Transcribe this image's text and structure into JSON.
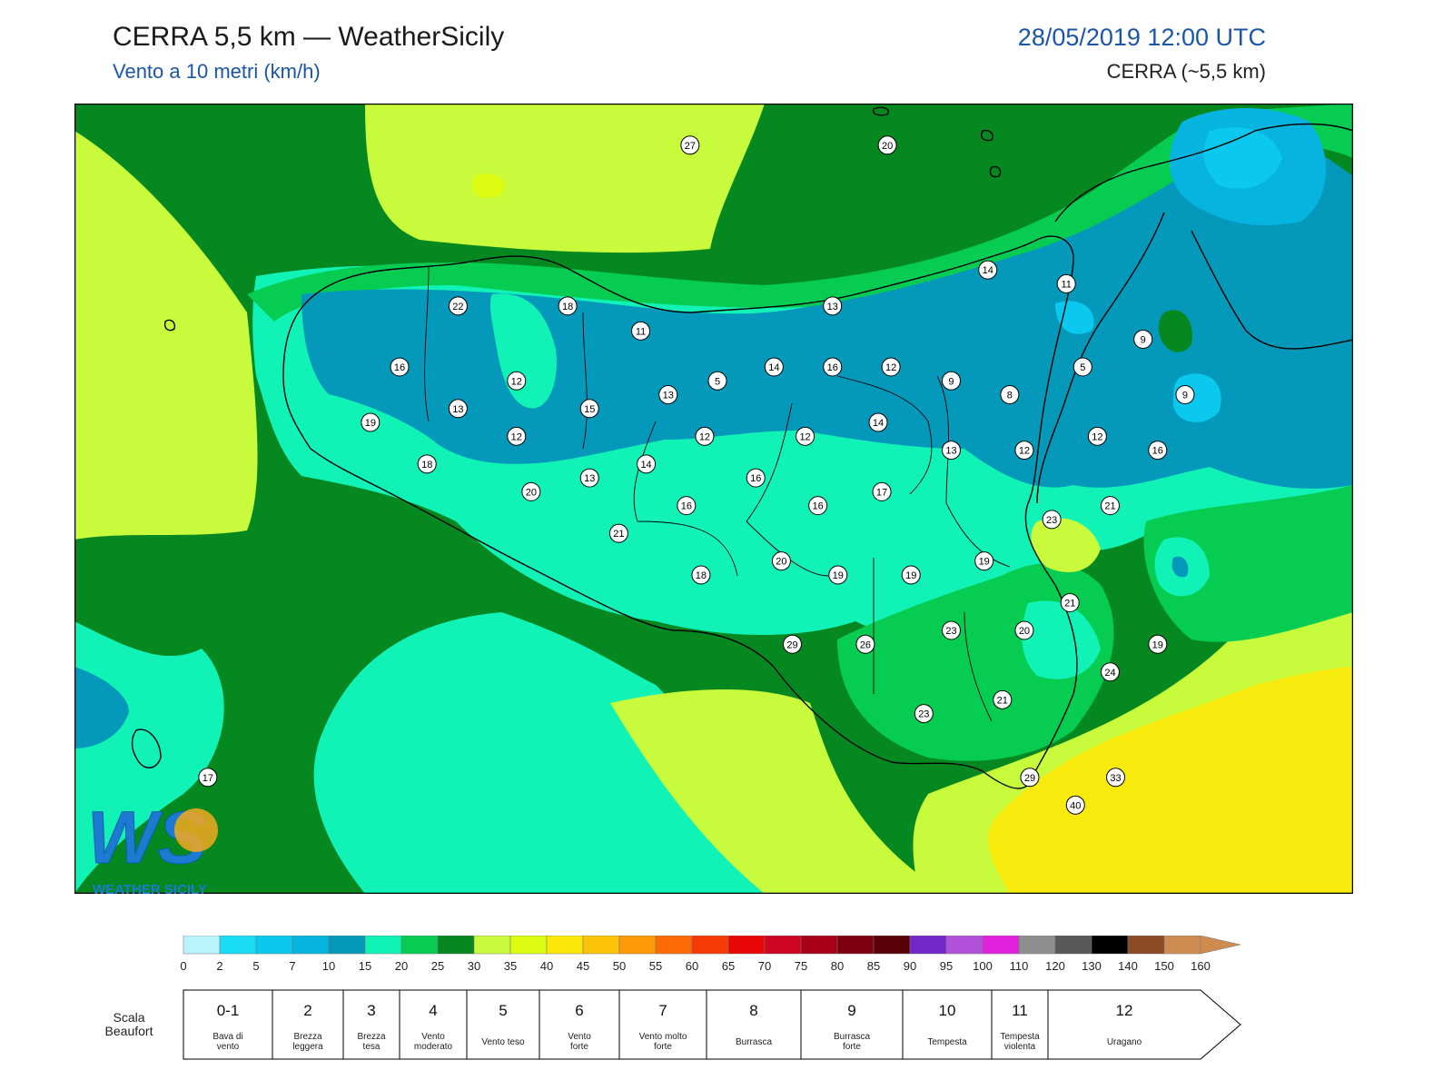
{
  "header": {
    "title": "CERRA 5,5 km — WeatherSicily",
    "subtitle": "Vento a 10 metri (km/h)",
    "datetime": "28/05/2019 12:00 UTC",
    "model": "CERRA (~5,5 km)"
  },
  "logo": {
    "text": "WEATHER SICILY",
    "mark": "WS"
  },
  "colors": {
    "border": "#000000",
    "station_fill": "#ffffff",
    "coast": "#000000"
  },
  "stations": [
    {
      "value": "27",
      "lon": 13.87,
      "lat": 38.7
    },
    {
      "value": "20",
      "lon": 14.95,
      "lat": 38.7
    },
    {
      "value": "14",
      "lon": 15.5,
      "lat": 38.25
    },
    {
      "value": "11",
      "lon": 15.93,
      "lat": 38.2
    },
    {
      "value": "22",
      "lon": 12.6,
      "lat": 38.12
    },
    {
      "value": "18",
      "lon": 13.2,
      "lat": 38.12
    },
    {
      "value": "11",
      "lon": 13.6,
      "lat": 38.03
    },
    {
      "value": "13",
      "lon": 14.65,
      "lat": 38.12
    },
    {
      "value": "16",
      "lon": 12.28,
      "lat": 37.9
    },
    {
      "value": "12",
      "lon": 12.92,
      "lat": 37.85
    },
    {
      "value": "13",
      "lon": 13.75,
      "lat": 37.8
    },
    {
      "value": "5",
      "lon": 14.02,
      "lat": 37.85
    },
    {
      "value": "14",
      "lon": 14.33,
      "lat": 37.9
    },
    {
      "value": "16",
      "lon": 14.65,
      "lat": 37.9
    },
    {
      "value": "12",
      "lon": 14.97,
      "lat": 37.9
    },
    {
      "value": "9",
      "lon": 15.3,
      "lat": 37.85
    },
    {
      "value": "8",
      "lon": 15.62,
      "lat": 37.8
    },
    {
      "value": "5",
      "lon": 16.02,
      "lat": 37.9
    },
    {
      "value": "9",
      "lon": 16.35,
      "lat": 38.0
    },
    {
      "value": "9",
      "lon": 16.58,
      "lat": 37.8
    },
    {
      "value": "13",
      "lon": 12.6,
      "lat": 37.75
    },
    {
      "value": "15",
      "lon": 13.32,
      "lat": 37.75
    },
    {
      "value": "19",
      "lon": 12.12,
      "lat": 37.7
    },
    {
      "value": "12",
      "lon": 12.92,
      "lat": 37.65
    },
    {
      "value": "12",
      "lon": 13.95,
      "lat": 37.65
    },
    {
      "value": "12",
      "lon": 14.5,
      "lat": 37.65
    },
    {
      "value": "14",
      "lon": 14.9,
      "lat": 37.7
    },
    {
      "value": "12",
      "lon": 16.1,
      "lat": 37.65
    },
    {
      "value": "13",
      "lon": 15.3,
      "lat": 37.6
    },
    {
      "value": "12",
      "lon": 15.7,
      "lat": 37.6
    },
    {
      "value": "16",
      "lon": 16.43,
      "lat": 37.6
    },
    {
      "value": "18",
      "lon": 12.43,
      "lat": 37.55
    },
    {
      "value": "14",
      "lon": 13.63,
      "lat": 37.55
    },
    {
      "value": "13",
      "lon": 13.32,
      "lat": 37.5
    },
    {
      "value": "16",
      "lon": 14.23,
      "lat": 37.5
    },
    {
      "value": "20",
      "lon": 13.0,
      "lat": 37.45
    },
    {
      "value": "17",
      "lon": 14.92,
      "lat": 37.45
    },
    {
      "value": "16",
      "lon": 13.85,
      "lat": 37.4
    },
    {
      "value": "16",
      "lon": 14.57,
      "lat": 37.4
    },
    {
      "value": "21",
      "lon": 16.17,
      "lat": 37.4
    },
    {
      "value": "23",
      "lon": 15.85,
      "lat": 37.35
    },
    {
      "value": "21",
      "lon": 13.48,
      "lat": 37.3
    },
    {
      "value": "20",
      "lon": 14.37,
      "lat": 37.2
    },
    {
      "value": "19",
      "lon": 15.48,
      "lat": 37.2
    },
    {
      "value": "18",
      "lon": 13.93,
      "lat": 37.15
    },
    {
      "value": "19",
      "lon": 14.68,
      "lat": 37.15
    },
    {
      "value": "19",
      "lon": 15.08,
      "lat": 37.15
    },
    {
      "value": "21",
      "lon": 15.95,
      "lat": 37.05
    },
    {
      "value": "23",
      "lon": 15.3,
      "lat": 36.95
    },
    {
      "value": "20",
      "lon": 15.7,
      "lat": 36.95
    },
    {
      "value": "29",
      "lon": 14.43,
      "lat": 36.9
    },
    {
      "value": "26",
      "lon": 14.83,
      "lat": 36.9
    },
    {
      "value": "19",
      "lon": 16.43,
      "lat": 36.9
    },
    {
      "value": "24",
      "lon": 16.17,
      "lat": 36.8
    },
    {
      "value": "21",
      "lon": 15.58,
      "lat": 36.7
    },
    {
      "value": "23",
      "lon": 15.15,
      "lat": 36.65
    },
    {
      "value": "17",
      "lon": 11.23,
      "lat": 36.42
    },
    {
      "value": "29",
      "lon": 15.73,
      "lat": 36.42
    },
    {
      "value": "33",
      "lon": 16.2,
      "lat": 36.42
    },
    {
      "value": "40",
      "lon": 15.98,
      "lat": 36.32
    }
  ],
  "legend": {
    "ticks": [
      "0",
      "2",
      "5",
      "7",
      "10",
      "15",
      "20",
      "25",
      "30",
      "35",
      "40",
      "45",
      "50",
      "55",
      "60",
      "65",
      "70",
      "75",
      "80",
      "85",
      "90",
      "95",
      "100",
      "110",
      "120",
      "130",
      "140",
      "150",
      "160"
    ],
    "colors": [
      "#b9f3fb",
      "#17dcf4",
      "#0ac8ee",
      "#07b3df",
      "#0498bb",
      "#11f2b7",
      "#06cd51",
      "#04881f",
      "#c7fb3b",
      "#dcfb12",
      "#fce808",
      "#fcc409",
      "#fb9a06",
      "#fb6a04",
      "#f53b05",
      "#e80707",
      "#cc0522",
      "#a80117",
      "#7e0010",
      "#580006",
      "#7428c9",
      "#b150d8",
      "#e121dc",
      "#8e8e8e",
      "#585858",
      "#000000",
      "#8a4b25",
      "#cf8c51"
    ],
    "beaufort_label": "Scala\nBeaufort",
    "beaufort": [
      {
        "num": "0-1",
        "desc": "Bava di vento"
      },
      {
        "num": "2",
        "desc": "Brezza leggera"
      },
      {
        "num": "3",
        "desc": "Brezza tesa"
      },
      {
        "num": "4",
        "desc": "Vento moderato"
      },
      {
        "num": "5",
        "desc": "Vento teso"
      },
      {
        "num": "6",
        "desc": "Vento forte"
      },
      {
        "num": "7",
        "desc": "Vento molto forte"
      },
      {
        "num": "8",
        "desc": "Burrasca"
      },
      {
        "num": "9",
        "desc": "Burrasca forte"
      },
      {
        "num": "10",
        "desc": "Tempesta"
      },
      {
        "num": "11",
        "desc": "Tempesta violenta"
      },
      {
        "num": "12",
        "desc": "Uragano"
      }
    ]
  }
}
